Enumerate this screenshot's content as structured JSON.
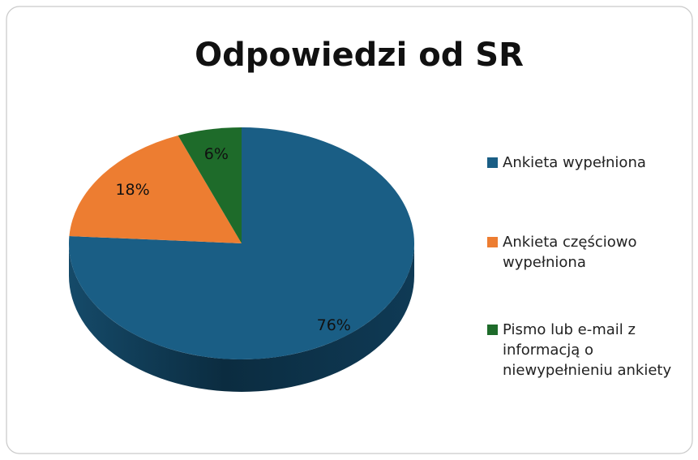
{
  "chart_data": {
    "type": "pie3d",
    "title": "Odpowiedzi od SR",
    "categories": [
      "Ankieta wypełniona",
      "Ankieta częściowo wypełniona",
      "Pismo lub e-mail z informacją o niewypełnieniu ankiety"
    ],
    "values": [
      76,
      18,
      6
    ],
    "value_labels": [
      "76%",
      "18%",
      "6%"
    ],
    "colors": [
      "#1a5e85",
      "#ed7d31",
      "#1e6b2a"
    ],
    "legend": "right"
  }
}
